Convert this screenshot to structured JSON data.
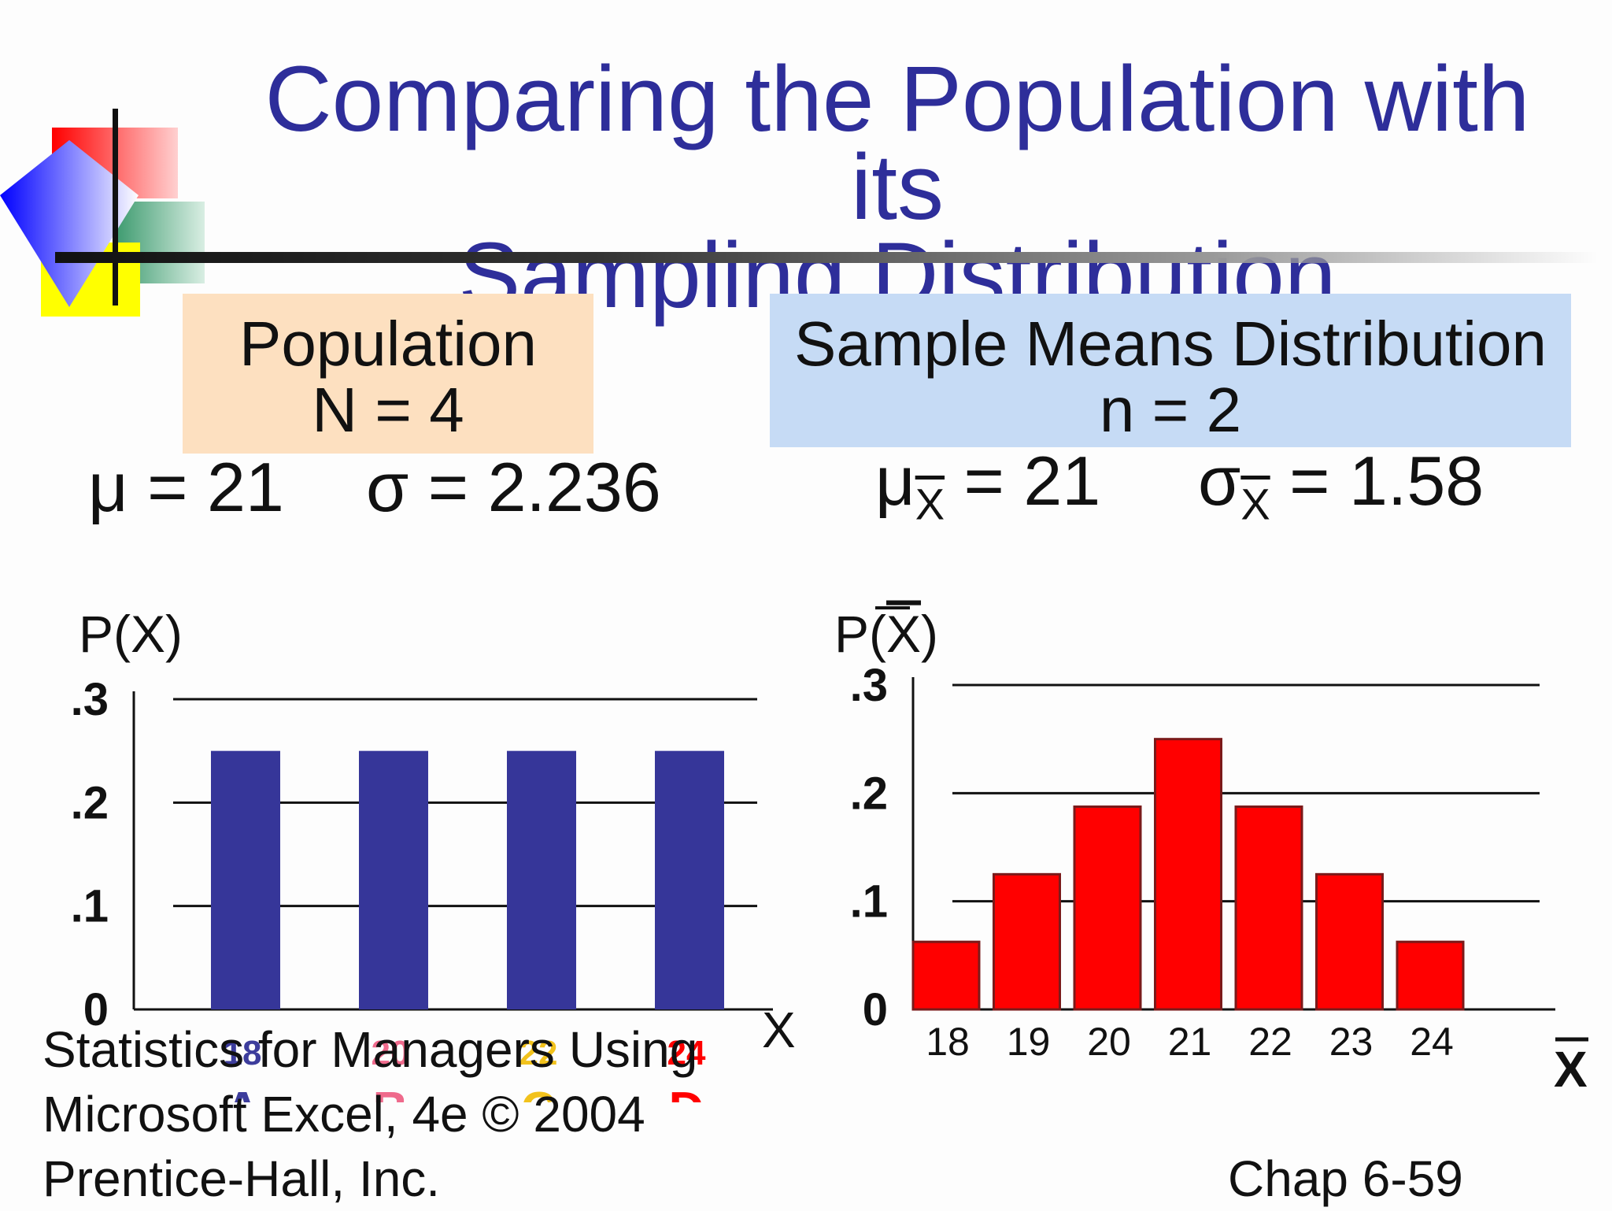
{
  "slide": {
    "title_line1": "Comparing the Population with its",
    "title_line2": "Sampling Distribution",
    "population": {
      "box_title": "Population",
      "box_sub": "N = 4",
      "mu": "μ = 21",
      "sigma": "σ = 2.236"
    },
    "sample": {
      "box_title": "Sample Means Distribution",
      "box_sub": "n = 2",
      "mu_sym": "μ",
      "mu_sub": "X",
      "mu_val": "= 21",
      "sigma_sym": "σ",
      "sigma_sub": "X",
      "sigma_val": "= 1.58"
    },
    "footer": {
      "line1": "Statistics for Managers Using",
      "line2": "Microsoft Excel, 4e © 2004",
      "line3": "Prentice-Hall, Inc.",
      "chap": "Chap 6-59"
    },
    "colors": {
      "title": "#2e2e9a",
      "population_bar": "#363699",
      "sample_bar": "#ff0000",
      "population_box": "#fde0c0",
      "sample_box": "#c6dbf5"
    }
  },
  "chart_data": [
    {
      "type": "bar",
      "ylabel": "P(X)",
      "xlabel": "X",
      "ylim": [
        0,
        0.3
      ],
      "yticks": [
        ".3",
        ".2",
        ".1",
        "0"
      ],
      "grid": true,
      "categories": [
        "18",
        "20",
        "22",
        "24"
      ],
      "category_letters": [
        "A",
        "B",
        "C",
        "D"
      ],
      "category_colors": [
        "#3d3d9c",
        "#ef6a8c",
        "#f2c21c",
        "#ff0000"
      ],
      "values": [
        0.25,
        0.25,
        0.25,
        0.25
      ]
    },
    {
      "type": "bar",
      "ylabel": "P(X)",
      "xlabel": "X",
      "ylim": [
        0,
        0.3
      ],
      "yticks": [
        ".3",
        ".2",
        ".1",
        "0"
      ],
      "grid": true,
      "categories": [
        "18",
        "19",
        "20",
        "21",
        "22",
        "23",
        "24"
      ],
      "values": [
        0.0625,
        0.125,
        0.1875,
        0.25,
        0.1875,
        0.125,
        0.0625
      ]
    }
  ]
}
